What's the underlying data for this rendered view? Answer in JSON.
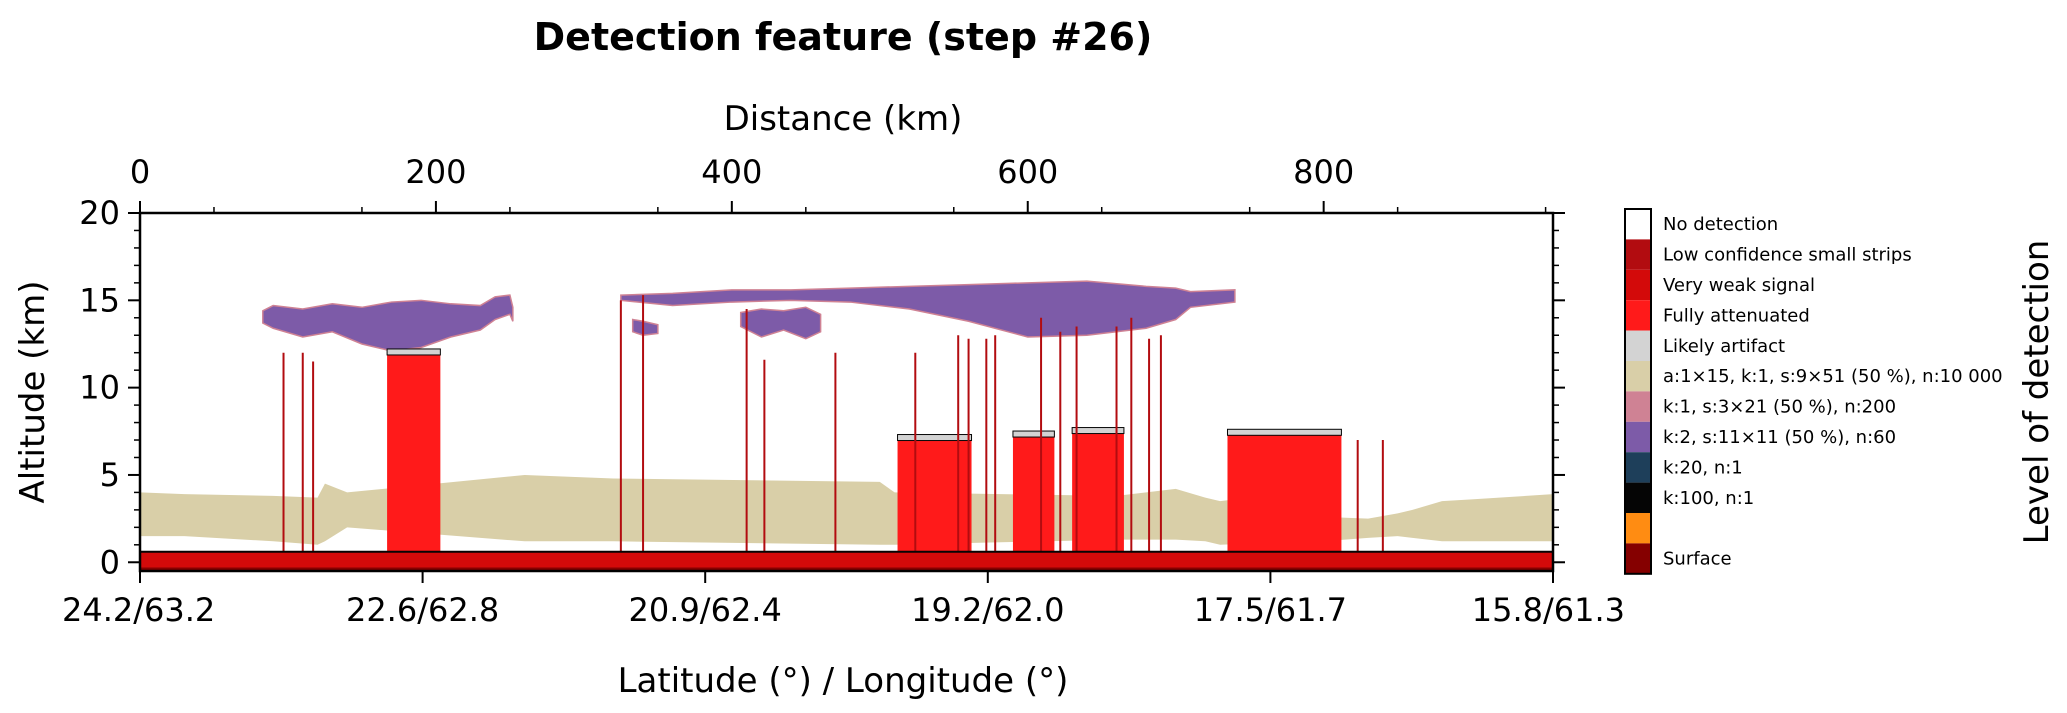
{
  "chart_data": {
    "type": "heatmap",
    "title": "Detection feature (step #26)",
    "xlabel": "Latitude (°) / Longitude (°)",
    "x2label": "Distance (km)",
    "ylabel": "Altitude (km)",
    "colorbar_label": "Level of detection",
    "xlim": [
      0,
      955
    ],
    "ylim": [
      -0.5,
      20
    ],
    "distance_ticks": [
      0,
      200,
      400,
      600,
      800
    ],
    "altitude_ticks": [
      0,
      5,
      10,
      15,
      20
    ],
    "latlon_ticks": [
      {
        "distance": 0,
        "label": "24.2/63.2"
      },
      {
        "distance": 191,
        "label": "22.6/62.8"
      },
      {
        "distance": 382,
        "label": "20.9/62.4"
      },
      {
        "distance": 573,
        "label": "19.2/62.0"
      },
      {
        "distance": 764,
        "label": "17.5/61.7"
      },
      {
        "distance": 955,
        "label": "15.8/61.3"
      }
    ],
    "legend": [
      {
        "label": "No detection",
        "color": "#ffffff"
      },
      {
        "label": "Low confidence small strips",
        "color": "#b20c10"
      },
      {
        "label": "Very weak signal",
        "color": "#d30a0a"
      },
      {
        "label": "Fully attenuated",
        "color": "#ff1a1a"
      },
      {
        "label": "Likely artifact",
        "color": "#d3d3d3"
      },
      {
        "label": "a:1×15, k:1, s:9×51 (50 %), n:10 000",
        "color": "#d9cfa8"
      },
      {
        "label": "k:1, s:3×21 (50 %), n:200",
        "color": "#cf8294"
      },
      {
        "label": "k:2, s:11×11 (50 %), n:60",
        "color": "#7d5ba8"
      },
      {
        "label": "k:20, n:1",
        "color": "#1e3f5a"
      },
      {
        "label": "k:100, n:1",
        "color": "#050505"
      },
      {
        "label": "",
        "color": "#ff8c12"
      },
      {
        "label": "Surface",
        "color": "#850000"
      }
    ],
    "regions": {
      "low_cloud": [
        {
          "x": [
            0,
            30,
            90,
            120,
            125,
            140,
            260,
            320,
            500,
            510,
            660,
            700,
            720,
            730,
            760,
            770,
            800,
            830,
            850,
            860,
            880,
            900,
            955
          ],
          "top": [
            4.0,
            3.9,
            3.8,
            3.7,
            4.5,
            4.0,
            5.0,
            4.8,
            4.6,
            4.0,
            3.8,
            4.2,
            3.7,
            3.5,
            3.8,
            3.0,
            2.6,
            2.5,
            2.8,
            3.0,
            3.5,
            3.6,
            3.9
          ],
          "bottom": [
            1.5,
            1.5,
            1.2,
            1.0,
            1.2,
            2.0,
            1.2,
            1.2,
            1.0,
            1.0,
            1.3,
            1.3,
            1.2,
            1.0,
            1.1,
            0.9,
            1.2,
            1.4,
            1.5,
            1.4,
            1.2,
            1.2,
            1.2
          ]
        }
      ],
      "upper_cloud": [
        {
          "x": [
            83,
            90,
            110,
            130,
            150,
            170,
            190,
            210,
            230,
            240,
            250,
            252
          ],
          "top": [
            14.4,
            14.7,
            14.5,
            14.8,
            14.6,
            14.9,
            15.0,
            14.8,
            14.7,
            15.2,
            15.3,
            14.6
          ],
          "bottom": [
            13.7,
            13.4,
            12.9,
            13.2,
            12.5,
            12.1,
            12.3,
            12.9,
            13.3,
            13.9,
            14.2,
            13.8
          ]
        },
        {
          "x": [
            325,
            360,
            400,
            440,
            480,
            520,
            560,
            600,
            640,
            680,
            700,
            710,
            740
          ],
          "top": [
            15.3,
            15.4,
            15.6,
            15.6,
            15.7,
            15.8,
            15.9,
            16.0,
            16.1,
            15.8,
            15.7,
            15.5,
            15.6
          ],
          "bottom": [
            15.0,
            14.7,
            14.9,
            15.0,
            14.9,
            14.5,
            13.8,
            12.9,
            13.0,
            13.4,
            13.9,
            14.6,
            14.9
          ]
        },
        {
          "x": [
            406,
            420,
            435,
            450,
            460
          ],
          "top": [
            14.3,
            14.5,
            14.4,
            14.6,
            14.2
          ],
          "bottom": [
            13.5,
            12.9,
            13.3,
            12.8,
            13.2
          ]
        },
        {
          "x": [
            333,
            340,
            350
          ],
          "top": [
            13.9,
            13.8,
            13.6
          ],
          "bottom": [
            13.2,
            13.0,
            13.1
          ]
        }
      ],
      "attenuated_blocks": [
        {
          "x0": 167,
          "x1": 203,
          "top": 12.1
        },
        {
          "x0": 512,
          "x1": 562,
          "top": 7.2
        },
        {
          "x0": 590,
          "x1": 618,
          "top": 7.4
        },
        {
          "x0": 630,
          "x1": 665,
          "top": 7.6
        },
        {
          "x0": 735,
          "x1": 812,
          "top": 7.5
        }
      ],
      "red_strips": [
        {
          "x": 97,
          "top": 12.0
        },
        {
          "x": 110,
          "top": 12.0
        },
        {
          "x": 117,
          "top": 11.5
        },
        {
          "x": 325,
          "top": 15.0
        },
        {
          "x": 340,
          "top": 15.3
        },
        {
          "x": 410,
          "top": 14.5
        },
        {
          "x": 422,
          "top": 11.6
        },
        {
          "x": 470,
          "top": 12.0
        },
        {
          "x": 524,
          "top": 12.0
        },
        {
          "x": 553,
          "top": 13.0
        },
        {
          "x": 560,
          "top": 12.8
        },
        {
          "x": 572,
          "top": 12.8
        },
        {
          "x": 578,
          "top": 13.0
        },
        {
          "x": 609,
          "top": 14.0
        },
        {
          "x": 622,
          "top": 13.2
        },
        {
          "x": 633,
          "top": 13.5
        },
        {
          "x": 660,
          "top": 13.5
        },
        {
          "x": 670,
          "top": 14.0
        },
        {
          "x": 682,
          "top": 12.8
        },
        {
          "x": 690,
          "top": 13.0
        },
        {
          "x": 823,
          "top": 7.0
        },
        {
          "x": 840,
          "top": 7.0
        }
      ],
      "surface_band": {
        "top": 0.6,
        "bottom": -0.3
      }
    }
  }
}
